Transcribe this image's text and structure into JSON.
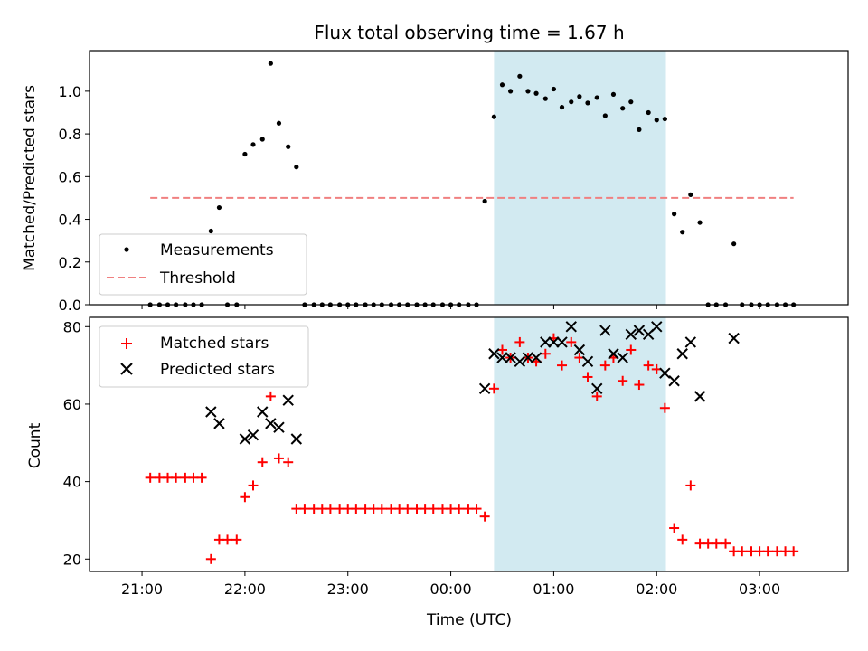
{
  "chart_data": {
    "type": "scatter",
    "title": "Flux total observing time = 1.67 h",
    "xlabel": "Time (UTC)",
    "x_ticks": [
      {
        "hour": 21,
        "label": "21:00"
      },
      {
        "hour": 22,
        "label": "22:00"
      },
      {
        "hour": 23,
        "label": "23:00"
      },
      {
        "hour": 24,
        "label": "00:00"
      },
      {
        "hour": 25,
        "label": "01:00"
      },
      {
        "hour": 26,
        "label": "02:00"
      },
      {
        "hour": 27,
        "label": "03:00"
      }
    ],
    "xlim": [
      20.49,
      27.86
    ],
    "highlight_span": {
      "start": 24.42,
      "end": 26.09,
      "color": "#add8e6"
    },
    "top_panel": {
      "ylabel": "Matched/Predicted stars",
      "ylim": [
        0,
        1.19
      ],
      "yticks": [
        "0.0",
        "0.2",
        "0.4",
        "0.6",
        "0.8",
        "1.0"
      ],
      "legend": {
        "placement": "lower-left",
        "measurements": "Measurements",
        "threshold": "Threshold"
      },
      "threshold": {
        "value": 0.5,
        "x_start": 21.08,
        "x_end": 27.33,
        "color": "#f08080"
      },
      "measurements": [
        [
          21.08,
          0
        ],
        [
          21.17,
          0
        ],
        [
          21.25,
          0
        ],
        [
          21.33,
          0
        ],
        [
          21.42,
          0
        ],
        [
          21.5,
          0
        ],
        [
          21.58,
          0
        ],
        [
          21.67,
          0.345
        ],
        [
          21.75,
          0.455
        ],
        [
          21.83,
          0
        ],
        [
          21.92,
          0
        ],
        [
          22.0,
          0.705
        ],
        [
          22.08,
          0.75
        ],
        [
          22.17,
          0.775
        ],
        [
          22.25,
          1.13
        ],
        [
          22.33,
          0.85
        ],
        [
          22.42,
          0.74
        ],
        [
          22.5,
          0.645
        ],
        [
          22.58,
          0
        ],
        [
          22.67,
          0
        ],
        [
          22.75,
          0
        ],
        [
          22.83,
          0
        ],
        [
          22.92,
          0
        ],
        [
          23.0,
          0
        ],
        [
          23.08,
          0
        ],
        [
          23.17,
          0
        ],
        [
          23.25,
          0
        ],
        [
          23.33,
          0
        ],
        [
          23.42,
          0
        ],
        [
          23.5,
          0
        ],
        [
          23.58,
          0
        ],
        [
          23.67,
          0
        ],
        [
          23.75,
          0
        ],
        [
          23.83,
          0
        ],
        [
          23.92,
          0
        ],
        [
          24.0,
          0
        ],
        [
          24.08,
          0
        ],
        [
          24.17,
          0
        ],
        [
          24.25,
          0
        ],
        [
          24.33,
          0.485
        ],
        [
          24.42,
          0.88
        ],
        [
          24.5,
          1.03
        ],
        [
          24.58,
          1.0
        ],
        [
          24.67,
          1.07
        ],
        [
          24.75,
          1.0
        ],
        [
          24.83,
          0.99
        ],
        [
          24.92,
          0.965
        ],
        [
          25.0,
          1.01
        ],
        [
          25.08,
          0.925
        ],
        [
          25.17,
          0.95
        ],
        [
          25.25,
          0.975
        ],
        [
          25.33,
          0.945
        ],
        [
          25.42,
          0.97
        ],
        [
          25.5,
          0.885
        ],
        [
          25.58,
          0.985
        ],
        [
          25.67,
          0.92
        ],
        [
          25.75,
          0.95
        ],
        [
          25.83,
          0.82
        ],
        [
          25.92,
          0.9
        ],
        [
          26.0,
          0.865
        ],
        [
          26.08,
          0.87
        ],
        [
          26.17,
          0.425
        ],
        [
          26.25,
          0.34
        ],
        [
          26.33,
          0.515
        ],
        [
          26.42,
          0.385
        ],
        [
          26.5,
          0
        ],
        [
          26.58,
          0
        ],
        [
          26.67,
          0
        ],
        [
          26.75,
          0.285
        ],
        [
          26.83,
          0
        ],
        [
          26.92,
          0
        ],
        [
          27.0,
          0
        ],
        [
          27.08,
          0
        ],
        [
          27.17,
          0
        ],
        [
          27.25,
          0
        ],
        [
          27.33,
          0
        ]
      ]
    },
    "bottom_panel": {
      "ylabel": "Count",
      "ylim": [
        16.8,
        82.4
      ],
      "yticks": [
        "20",
        "40",
        "60",
        "80"
      ],
      "legend": {
        "placement": "upper-left",
        "matched": "Matched stars",
        "predicted": "Predicted stars"
      },
      "matched": [
        [
          21.08,
          41
        ],
        [
          21.17,
          41
        ],
        [
          21.25,
          41
        ],
        [
          21.33,
          41
        ],
        [
          21.42,
          41
        ],
        [
          21.5,
          41
        ],
        [
          21.58,
          41
        ],
        [
          21.67,
          20
        ],
        [
          21.75,
          25
        ],
        [
          21.83,
          25
        ],
        [
          21.92,
          25
        ],
        [
          22.0,
          36
        ],
        [
          22.08,
          39
        ],
        [
          22.17,
          45
        ],
        [
          22.25,
          62
        ],
        [
          22.33,
          46
        ],
        [
          22.42,
          45
        ],
        [
          22.5,
          33
        ],
        [
          22.58,
          33
        ],
        [
          22.67,
          33
        ],
        [
          22.75,
          33
        ],
        [
          22.83,
          33
        ],
        [
          22.92,
          33
        ],
        [
          23.0,
          33
        ],
        [
          23.08,
          33
        ],
        [
          23.17,
          33
        ],
        [
          23.25,
          33
        ],
        [
          23.33,
          33
        ],
        [
          23.42,
          33
        ],
        [
          23.5,
          33
        ],
        [
          23.58,
          33
        ],
        [
          23.67,
          33
        ],
        [
          23.75,
          33
        ],
        [
          23.83,
          33
        ],
        [
          23.92,
          33
        ],
        [
          24.0,
          33
        ],
        [
          24.08,
          33
        ],
        [
          24.17,
          33
        ],
        [
          24.25,
          33
        ],
        [
          24.33,
          31
        ],
        [
          24.42,
          64
        ],
        [
          24.5,
          74
        ],
        [
          24.58,
          72
        ],
        [
          24.67,
          76
        ],
        [
          24.75,
          72
        ],
        [
          24.83,
          71
        ],
        [
          24.92,
          73
        ],
        [
          25.0,
          77
        ],
        [
          25.08,
          70
        ],
        [
          25.17,
          76
        ],
        [
          25.25,
          72
        ],
        [
          25.33,
          67
        ],
        [
          25.42,
          62
        ],
        [
          25.5,
          70
        ],
        [
          25.58,
          72
        ],
        [
          25.67,
          66
        ],
        [
          25.75,
          74
        ],
        [
          25.83,
          65
        ],
        [
          25.92,
          70
        ],
        [
          26.0,
          69
        ],
        [
          26.08,
          59
        ],
        [
          26.17,
          28
        ],
        [
          26.25,
          25
        ],
        [
          26.33,
          39
        ],
        [
          26.42,
          24
        ],
        [
          26.5,
          24
        ],
        [
          26.58,
          24
        ],
        [
          26.67,
          24
        ],
        [
          26.75,
          22
        ],
        [
          26.83,
          22
        ],
        [
          26.92,
          22
        ],
        [
          27.0,
          22
        ],
        [
          27.08,
          22
        ],
        [
          27.17,
          22
        ],
        [
          27.25,
          22
        ],
        [
          27.33,
          22
        ]
      ],
      "predicted": [
        [
          21.67,
          58
        ],
        [
          21.75,
          55
        ],
        [
          22.0,
          51
        ],
        [
          22.08,
          52
        ],
        [
          22.17,
          58
        ],
        [
          22.25,
          55
        ],
        [
          22.33,
          54
        ],
        [
          22.42,
          61
        ],
        [
          22.5,
          51
        ],
        [
          24.33,
          64
        ],
        [
          24.42,
          73
        ],
        [
          24.5,
          72
        ],
        [
          24.58,
          72
        ],
        [
          24.67,
          71
        ],
        [
          24.75,
          72
        ],
        [
          24.83,
          72
        ],
        [
          24.92,
          76
        ],
        [
          25.0,
          76
        ],
        [
          25.08,
          76
        ],
        [
          25.17,
          80
        ],
        [
          25.25,
          74
        ],
        [
          25.33,
          71
        ],
        [
          25.42,
          64
        ],
        [
          25.5,
          79
        ],
        [
          25.58,
          73
        ],
        [
          25.67,
          72
        ],
        [
          25.75,
          78
        ],
        [
          25.83,
          79
        ],
        [
          25.92,
          78
        ],
        [
          26.0,
          80
        ],
        [
          26.08,
          68
        ],
        [
          26.17,
          66
        ],
        [
          26.25,
          73
        ],
        [
          26.33,
          76
        ],
        [
          26.42,
          62
        ],
        [
          26.75,
          77
        ]
      ]
    }
  }
}
